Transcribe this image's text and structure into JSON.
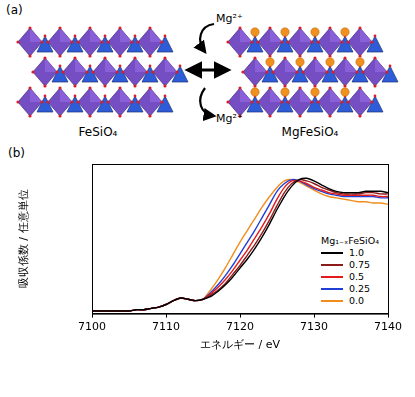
{
  "panel_a": {
    "label": "(a)",
    "left_label": "FeSiO₄",
    "right_label": "MgFeSiO₄",
    "ion_top": "Mg²⁺",
    "ion_bottom": "Mg²⁺"
  },
  "chart_data": {
    "type": "line",
    "panel_label": "(b)",
    "x_label": "エネルギー / eV",
    "y_label": "吸収係数 / 任意単位",
    "legend_title": "Mg₁₋ₓFeSiO₄",
    "legend": "lower right",
    "grid": false,
    "tick_labels": "x",
    "xlim": [
      7100,
      7140
    ],
    "xticks": [
      7100,
      7110,
      7120,
      7130,
      7140
    ],
    "ylim": [
      0,
      1.15
    ],
    "x": [
      7100,
      7101,
      7102,
      7103,
      7104,
      7105,
      7106,
      7107,
      7108,
      7109,
      7110,
      7111,
      7112,
      7113,
      7114,
      7115,
      7116,
      7117,
      7118,
      7119,
      7120,
      7121,
      7122,
      7123,
      7124,
      7125,
      7126,
      7127,
      7128,
      7129,
      7130,
      7131,
      7132,
      7133,
      7134,
      7135,
      7136,
      7137,
      7138,
      7139,
      7140
    ],
    "series": [
      {
        "name": "1.0",
        "color": "#000000",
        "values": [
          0.02,
          0.02,
          0.02,
          0.02,
          0.02,
          0.02,
          0.03,
          0.03,
          0.04,
          0.05,
          0.07,
          0.1,
          0.12,
          0.11,
          0.1,
          0.11,
          0.13,
          0.17,
          0.22,
          0.28,
          0.35,
          0.42,
          0.5,
          0.59,
          0.69,
          0.8,
          0.9,
          0.98,
          1.03,
          1.04,
          1.02,
          0.99,
          0.96,
          0.94,
          0.93,
          0.93,
          0.93,
          0.94,
          0.94,
          0.94,
          0.93
        ]
      },
      {
        "name": "0.75",
        "color": "#8b1a1a",
        "values": [
          0.02,
          0.02,
          0.02,
          0.02,
          0.02,
          0.02,
          0.03,
          0.03,
          0.04,
          0.05,
          0.07,
          0.1,
          0.12,
          0.11,
          0.1,
          0.11,
          0.14,
          0.18,
          0.23,
          0.3,
          0.37,
          0.45,
          0.53,
          0.62,
          0.72,
          0.83,
          0.93,
          1.0,
          1.03,
          1.02,
          1.0,
          0.97,
          0.95,
          0.93,
          0.92,
          0.92,
          0.92,
          0.93,
          0.93,
          0.92,
          0.92
        ]
      },
      {
        "name": "0.5",
        "color": "#e41a1c",
        "values": [
          0.02,
          0.02,
          0.02,
          0.02,
          0.02,
          0.02,
          0.03,
          0.03,
          0.04,
          0.05,
          0.07,
          0.1,
          0.12,
          0.11,
          0.1,
          0.11,
          0.15,
          0.2,
          0.26,
          0.33,
          0.41,
          0.49,
          0.58,
          0.67,
          0.77,
          0.88,
          0.97,
          1.02,
          1.02,
          1.0,
          0.97,
          0.95,
          0.93,
          0.92,
          0.91,
          0.91,
          0.91,
          0.91,
          0.91,
          0.9,
          0.9
        ]
      },
      {
        "name": "0.25",
        "color": "#1f3fd6",
        "values": [
          0.02,
          0.02,
          0.02,
          0.02,
          0.02,
          0.02,
          0.03,
          0.03,
          0.04,
          0.05,
          0.07,
          0.1,
          0.12,
          0.11,
          0.1,
          0.11,
          0.16,
          0.22,
          0.29,
          0.37,
          0.46,
          0.55,
          0.64,
          0.74,
          0.84,
          0.94,
          1.0,
          1.03,
          1.02,
          0.99,
          0.96,
          0.94,
          0.92,
          0.91,
          0.9,
          0.9,
          0.9,
          0.9,
          0.9,
          0.89,
          0.89
        ]
      },
      {
        "name": "0.0",
        "color": "#f28c1a",
        "values": [
          0.02,
          0.02,
          0.02,
          0.02,
          0.02,
          0.02,
          0.03,
          0.03,
          0.04,
          0.05,
          0.07,
          0.1,
          0.12,
          0.11,
          0.1,
          0.11,
          0.18,
          0.26,
          0.35,
          0.45,
          0.55,
          0.64,
          0.73,
          0.82,
          0.9,
          0.97,
          1.02,
          1.03,
          1.01,
          0.98,
          0.95,
          0.92,
          0.9,
          0.89,
          0.88,
          0.87,
          0.86,
          0.86,
          0.85,
          0.85,
          0.84
        ]
      }
    ]
  }
}
